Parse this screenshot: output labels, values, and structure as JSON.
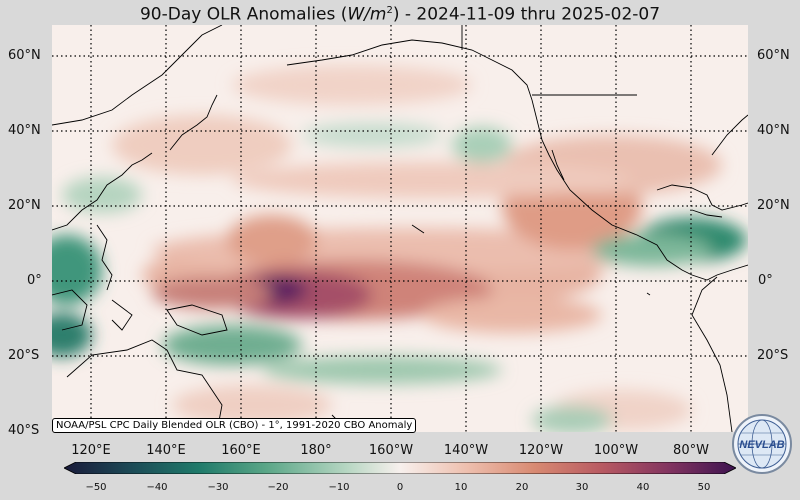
{
  "title": {
    "prefix": "90-Day OLR Anomalies (",
    "unit_base": "W/m",
    "unit_exp": "2",
    "suffix": ") - 2024-11-09 thru 2025-02-07"
  },
  "map": {
    "latitude_labels": [
      "60°N",
      "40°N",
      "20°N",
      "0°",
      "20°S",
      "40°S"
    ],
    "longitude_labels": [
      "120°E",
      "140°E",
      "160°E",
      "180°",
      "160°W",
      "140°W",
      "120°W",
      "100°W",
      "80°W"
    ],
    "gridlines": "dotted",
    "projection": "plate carrée",
    "colors": {
      "negative": "#1f7a60",
      "neutral": "#faf3f0",
      "positive_low": "#d98870",
      "positive_high": "#3d1350",
      "land_outline": "#000000"
    }
  },
  "credit": "NOAA/PSL CPC Daily Blended OLR (CBO) - 1°, 1991-2020 CBO Anomaly",
  "colorbar": {
    "ticks": [
      "−50",
      "−40",
      "−30",
      "−20",
      "−10",
      "0",
      "10",
      "20",
      "30",
      "40",
      "50"
    ],
    "min": -50,
    "max": 50,
    "colors": [
      "#1a1a3a",
      "#1c4a56",
      "#1f7a6a",
      "#5aa687",
      "#b6d6c2",
      "#f7f0ed",
      "#eebfae",
      "#d88a72",
      "#b85a62",
      "#823460",
      "#3d1350"
    ]
  },
  "logo": {
    "text": "NEVLAB",
    "icon": "globe-logo-icon"
  }
}
